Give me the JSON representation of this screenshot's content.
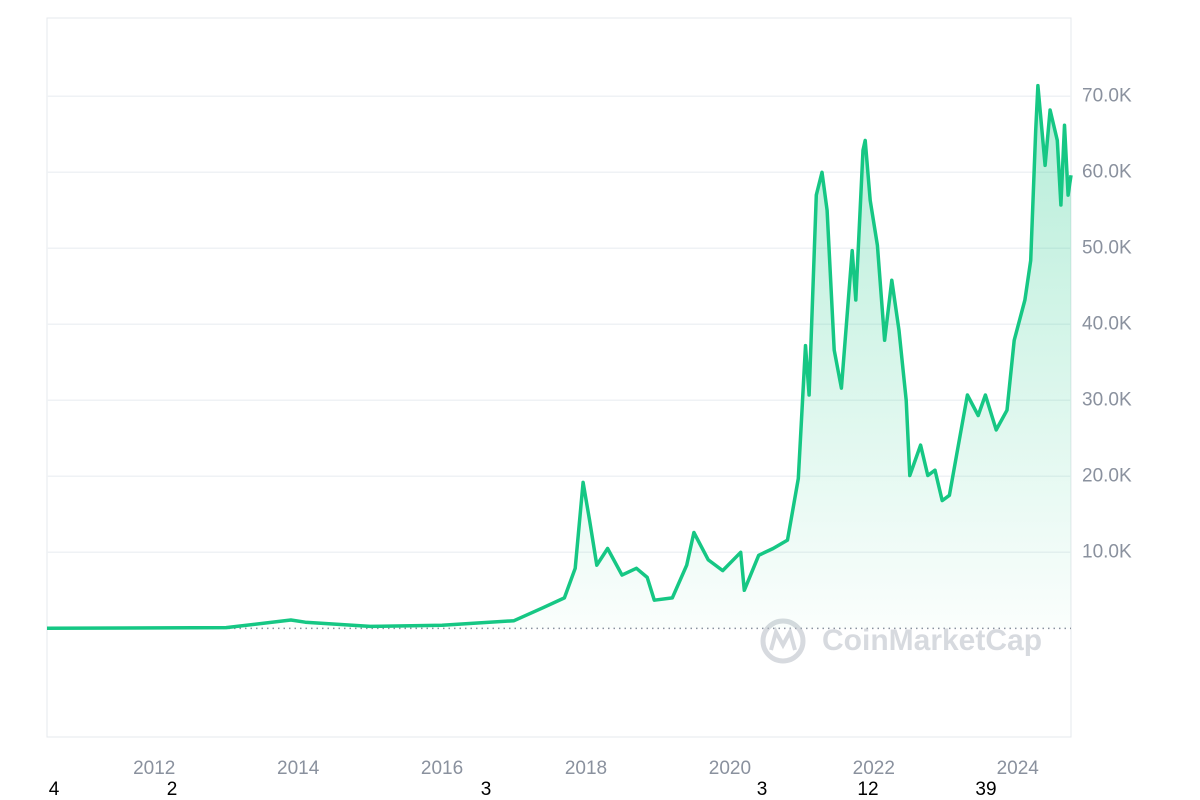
{
  "chart_data": {
    "type": "line",
    "color": "#16c784",
    "grid": true,
    "x": [
      2010.51,
      2013.0,
      2013.9,
      2014.1,
      2015.0,
      2016.0,
      2017.0,
      2017.4,
      2017.7,
      2017.85,
      2017.96,
      2018.05,
      2018.15,
      2018.3,
      2018.5,
      2018.7,
      2018.85,
      2018.95,
      2019.2,
      2019.4,
      2019.5,
      2019.7,
      2019.9,
      2020.15,
      2020.2,
      2020.4,
      2020.6,
      2020.8,
      2020.95,
      2021.05,
      2021.1,
      2021.2,
      2021.28,
      2021.35,
      2021.45,
      2021.55,
      2021.7,
      2021.75,
      2021.85,
      2021.88,
      2021.95,
      2022.05,
      2022.15,
      2022.25,
      2022.35,
      2022.45,
      2022.5,
      2022.65,
      2022.75,
      2022.85,
      2022.95,
      2023.05,
      2023.15,
      2023.3,
      2023.45,
      2023.55,
      2023.7,
      2023.85,
      2023.95,
      2024.1,
      2024.18,
      2024.25,
      2024.28,
      2024.38,
      2024.45,
      2024.55,
      2024.6,
      2024.65,
      2024.7,
      2024.74
    ],
    "values": [
      0,
      100,
      1100,
      800,
      250,
      400,
      1000,
      2700,
      4000,
      7900,
      19200,
      14200,
      8300,
      10500,
      7000,
      7900,
      6700,
      3700,
      4000,
      8300,
      12600,
      9000,
      7600,
      10000,
      5000,
      9600,
      10500,
      11600,
      19700,
      37200,
      30700,
      57000,
      60000,
      55000,
      36600,
      31600,
      49700,
      43200,
      62900,
      64200,
      56300,
      50400,
      37900,
      45800,
      39200,
      30000,
      20100,
      24100,
      20100,
      20800,
      16800,
      17500,
      22800,
      30700,
      28000,
      30700,
      26100,
      28700,
      37900,
      43200,
      48400,
      65500,
      71400,
      60900,
      68200,
      64200,
      55700,
      66200,
      57000,
      59600
    ],
    "xlim": [
      2010.51,
      2024.74
    ],
    "xticks": [
      2012,
      2014,
      2016,
      2018,
      2020,
      2022,
      2024
    ],
    "ylim": [
      -14300,
      80300
    ],
    "yticks": [
      {
        "value": 10000,
        "label": "10.0K"
      },
      {
        "value": 20000,
        "label": "20.0K"
      },
      {
        "value": 30000,
        "label": "30.0K"
      },
      {
        "value": 40000,
        "label": "40.0K"
      },
      {
        "value": 50000,
        "label": "50.0K"
      },
      {
        "value": 60000,
        "label": "60.0K"
      },
      {
        "value": 70000,
        "label": "70.0K"
      }
    ],
    "watermark": "CoinMarketCap",
    "footer_labels": [
      "4",
      "2",
      "3",
      "3",
      "12",
      "39"
    ]
  }
}
